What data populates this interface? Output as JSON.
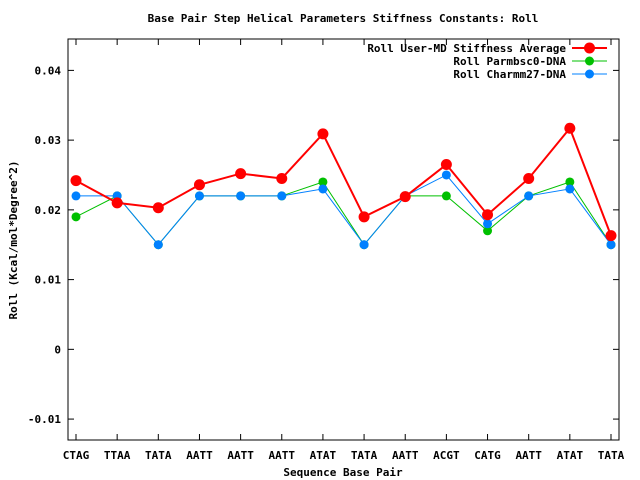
{
  "chart_data": {
    "type": "line",
    "title": "Base Pair Step Helical Parameters Stiffness Constants: Roll",
    "xlabel": "Sequence Base Pair",
    "ylabel": "Roll (Kcal/mol*Degree^2)",
    "categories": [
      "CTAG",
      "TTAA",
      "TATA",
      "AATT",
      "AATT",
      "AATT",
      "ATAT",
      "TATA",
      "AATT",
      "ACGT",
      "CATG",
      "AATT",
      "ATAT",
      "TATA"
    ],
    "ylim": [
      -0.013,
      0.0445
    ],
    "yticks": [
      -0.01,
      0,
      0.01,
      0.02,
      0.03,
      0.04
    ],
    "ytick_labels": [
      "-0.01",
      "0",
      "0.01",
      "0.02",
      "0.03",
      "0.04"
    ],
    "legend_position": "top-right",
    "grid": false,
    "series": [
      {
        "name": "Roll User-MD Stiffness Average",
        "color": "#ff0000",
        "values": [
          0.0242,
          0.021,
          0.0203,
          0.0236,
          0.0252,
          0.0245,
          0.0309,
          0.019,
          0.0219,
          0.0265,
          0.0193,
          0.0245,
          0.0317,
          0.0163
        ]
      },
      {
        "name": "Roll Parmbsc0-DNA",
        "color": "#00c000",
        "values": [
          0.019,
          0.022,
          0.015,
          0.022,
          0.022,
          0.022,
          0.024,
          0.015,
          0.022,
          0.022,
          0.017,
          0.022,
          0.024,
          0.015
        ]
      },
      {
        "name": "Roll Charmm27-DNA",
        "color": "#0080ff",
        "values": [
          0.022,
          0.022,
          0.015,
          0.022,
          0.022,
          0.022,
          0.023,
          0.015,
          0.022,
          0.025,
          0.018,
          0.022,
          0.023,
          0.015
        ]
      }
    ]
  }
}
